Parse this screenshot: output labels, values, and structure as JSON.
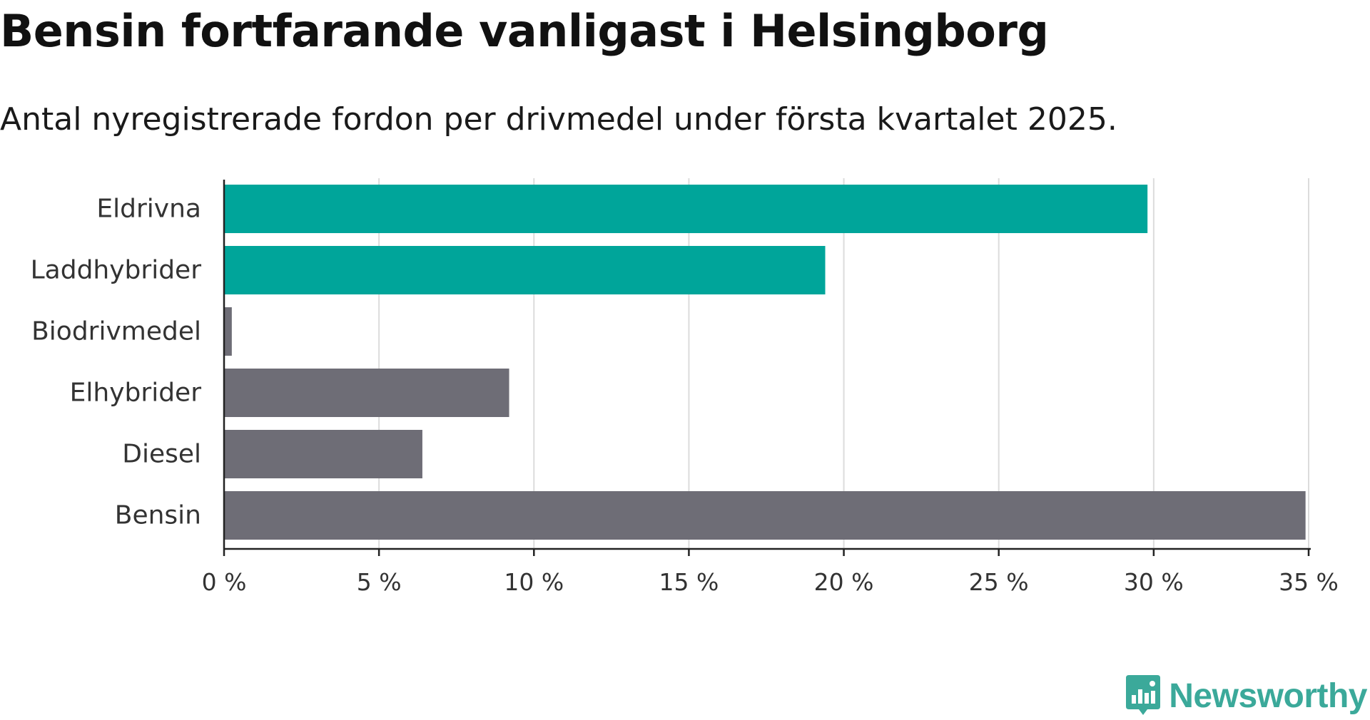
{
  "chart_data": {
    "type": "bar",
    "orientation": "horizontal",
    "title": "Bensin fortfarande vanligast i Helsingborg",
    "subtitle": "Antal nyregistrerade fordon per drivmedel under första kvartalet 2025.",
    "categories": [
      "Eldrivna",
      "Laddhybrider",
      "Biodrivmedel",
      "Elhybrider",
      "Diesel",
      "Bensin"
    ],
    "values": [
      29.8,
      19.4,
      0.25,
      9.2,
      6.4,
      34.9
    ],
    "colors": [
      "#00a59a",
      "#00a59a",
      "#6e6d76",
      "#6e6d76",
      "#6e6d76",
      "#6e6d76"
    ],
    "xlim": [
      0,
      35
    ],
    "xticks": [
      0,
      5,
      10,
      15,
      20,
      25,
      30,
      35
    ],
    "xtick_labels": [
      "0 %",
      "5 %",
      "10 %",
      "15 %",
      "20 %",
      "25 %",
      "30 %",
      "35 %"
    ],
    "grid": "vertical"
  },
  "brand": {
    "name": "Newsworthy",
    "icon": "newsworthy-logo-icon",
    "color": "#3ba99a"
  }
}
